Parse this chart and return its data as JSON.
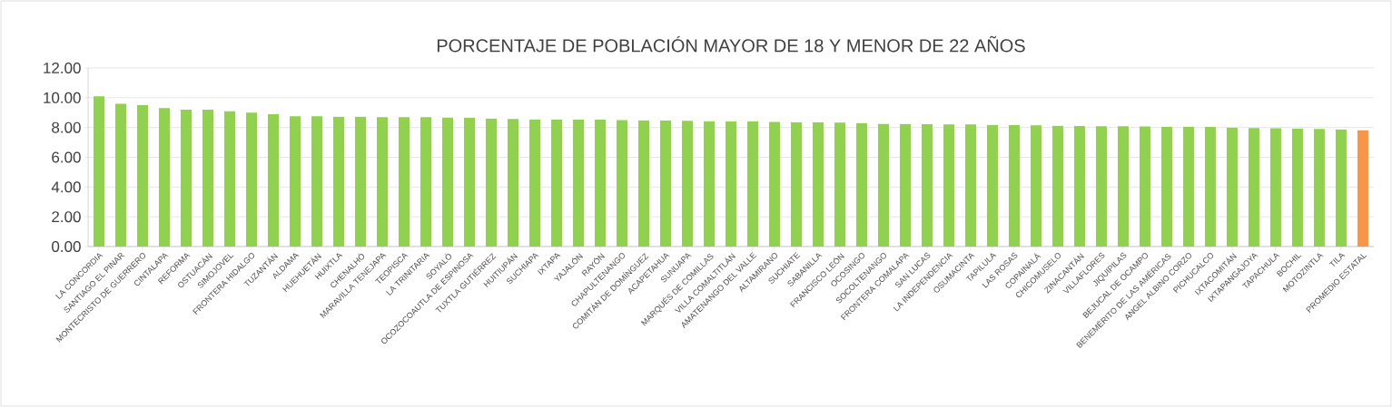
{
  "chart_data": {
    "type": "bar",
    "title": "PORCENTAJE DE POBLACIÓN MAYOR DE 18 Y MENOR DE 22 AÑOS",
    "categories": [
      "LA CONCORDIA",
      "SANTIAGO EL PINAR",
      "MONTECRISTO DE GUERRERO",
      "CINTALAPA",
      "REFORMA",
      "OSTUACÁN",
      "SIMOJOVEL",
      "FRONTERA HIDALGO",
      "TUZANTÁN",
      "ALDAMA",
      "HUEHUETÁN",
      "HUIXTLA",
      "CHENALHÓ",
      "MARAVILLA TENEJAPA",
      "TEOPISCA",
      "LA TRINITARIA",
      "SOYALÓ",
      "OCOZOCOAUTLA DE ESPINOSA",
      "TUXTLA GUTIÉRREZ",
      "HUITIUPÁN",
      "SUCHIAPA",
      "IXTAPA",
      "YAJALÓN",
      "RAYÓN",
      "CHAPULTENANGO",
      "COMITÁN DE DOMÍNGUEZ",
      "ACAPETAHUA",
      "SUNUAPA",
      "MARQUÉS DE COMILLAS",
      "VILLA COMALTITLÁN",
      "AMATENANGO DEL VALLE",
      "ALTAMIRANO",
      "SUCHIATE",
      "SABANILLA",
      "FRANCISCO LEÓN",
      "OCOSINGO",
      "SOCOLTENANGO",
      "FRONTERA COMALAPA",
      "SAN LUCAS",
      "LA INDEPENDENCIA",
      "OSUMACINTA",
      "TAPILULA",
      "LAS ROSAS",
      "COPAINALÁ",
      "CHICOMUSELO",
      "ZINACANTÁN",
      "VILLAFLORES",
      "JIQUIPILAS",
      "BEJUCAL DE OCAMPO",
      "BENEMÉRITO DE LAS AMÉRICAS",
      "ANGEL ALBINO CORZO",
      "PICHUCALCO",
      "IXTACOMITÁN",
      "IXTAPANGAJOYA",
      "TAPACHULA",
      "BOCHIL",
      "MOTOZINTLA",
      "TILA",
      "PROMEDIO ESTATAL"
    ],
    "values": [
      10.1,
      9.6,
      9.5,
      9.3,
      9.2,
      9.2,
      9.1,
      9.0,
      8.9,
      8.75,
      8.75,
      8.72,
      8.72,
      8.7,
      8.7,
      8.7,
      8.68,
      8.66,
      8.6,
      8.57,
      8.55,
      8.54,
      8.53,
      8.52,
      8.5,
      8.48,
      8.46,
      8.45,
      8.42,
      8.41,
      8.4,
      8.38,
      8.36,
      8.35,
      8.33,
      8.3,
      8.25,
      8.24,
      8.22,
      8.21,
      8.2,
      8.18,
      8.16,
      8.14,
      8.12,
      8.1,
      8.09,
      8.08,
      8.07,
      8.06,
      8.05,
      8.04,
      8.0,
      7.96,
      7.95,
      7.92,
      7.9,
      7.88,
      7.82
    ],
    "colors": [
      "#92d050",
      "#92d050",
      "#92d050",
      "#92d050",
      "#92d050",
      "#92d050",
      "#92d050",
      "#92d050",
      "#92d050",
      "#92d050",
      "#92d050",
      "#92d050",
      "#92d050",
      "#92d050",
      "#92d050",
      "#92d050",
      "#92d050",
      "#92d050",
      "#92d050",
      "#92d050",
      "#92d050",
      "#92d050",
      "#92d050",
      "#92d050",
      "#92d050",
      "#92d050",
      "#92d050",
      "#92d050",
      "#92d050",
      "#92d050",
      "#92d050",
      "#92d050",
      "#92d050",
      "#92d050",
      "#92d050",
      "#92d050",
      "#92d050",
      "#92d050",
      "#92d050",
      "#92d050",
      "#92d050",
      "#92d050",
      "#92d050",
      "#92d050",
      "#92d050",
      "#92d050",
      "#92d050",
      "#92d050",
      "#92d050",
      "#92d050",
      "#92d050",
      "#92d050",
      "#92d050",
      "#92d050",
      "#92d050",
      "#92d050",
      "#92d050",
      "#92d050",
      "#f79646"
    ],
    "ylim": [
      0,
      12
    ],
    "yticks": [
      {
        "value": 0,
        "label": "0.00"
      },
      {
        "value": 2,
        "label": "2.00"
      },
      {
        "value": 4,
        "label": "4.00"
      },
      {
        "value": 6,
        "label": "6.00"
      },
      {
        "value": 8,
        "label": "8.00"
      },
      {
        "value": 10,
        "label": "10.00"
      },
      {
        "value": 12,
        "label": "12.00"
      }
    ],
    "grid": "y"
  }
}
